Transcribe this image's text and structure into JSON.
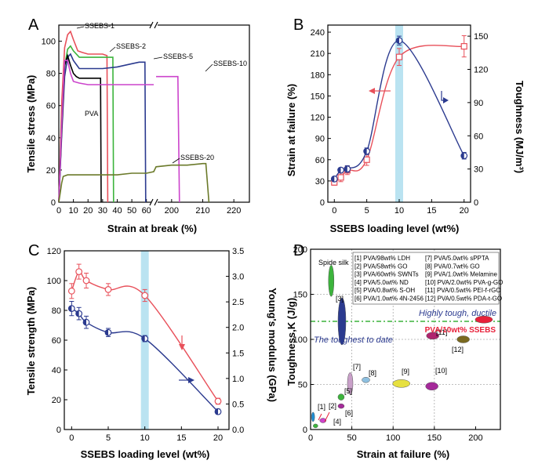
{
  "figure": {
    "colors": {
      "axis": "#000000",
      "grid": "#aaaaaa",
      "red": "#e8505a",
      "blue": "#2b3a8f",
      "cyan": "#a9dcee"
    }
  },
  "chart_data": [
    {
      "panel": "A",
      "type": "line",
      "xlabel": "Strain at break (%)",
      "ylabel": "Tensile stress (MPa)",
      "xlim": [
        0,
        225
      ],
      "ylim": [
        0,
        110
      ],
      "xticks": [
        0,
        10,
        20,
        30,
        40,
        50,
        60,
        200,
        210,
        220
      ],
      "ytick_labels": [
        "0",
        "20",
        "40",
        "60",
        "80",
        "100"
      ],
      "axis_break": [
        65,
        195
      ],
      "series": [
        {
          "name": "SSEBS-1",
          "color": "#e8505a",
          "x": [
            0,
            2,
            4,
            6,
            8,
            10,
            13,
            16,
            20,
            25,
            30,
            33,
            33.5
          ],
          "y": [
            0,
            62,
            96,
            104,
            106,
            101,
            94,
            93,
            92,
            92,
            92,
            91,
            0
          ]
        },
        {
          "name": "SSEBS-2",
          "color": "#3cb43c",
          "x": [
            0,
            2,
            4,
            6,
            8,
            10,
            14,
            18,
            22,
            26,
            30,
            34,
            36,
            37,
            37.5
          ],
          "y": [
            0,
            50,
            84,
            95,
            97,
            94,
            90,
            90,
            90,
            90,
            90,
            90,
            90,
            90,
            0
          ]
        },
        {
          "name": "SSEBS-5",
          "color": "#2b3a8f",
          "x": [
            0,
            2,
            4,
            6,
            8,
            10,
            14,
            20,
            30,
            40,
            50,
            55,
            59,
            59.5
          ],
          "y": [
            0,
            42,
            78,
            90,
            92,
            88,
            83,
            83,
            83,
            84,
            86,
            87,
            87,
            0
          ]
        },
        {
          "name": "PVA",
          "color": "#000000",
          "x": [
            0,
            2,
            4,
            6,
            8,
            10,
            12,
            14,
            16,
            20,
            25,
            28,
            28.6,
            29
          ],
          "y": [
            0,
            45,
            85,
            91,
            85,
            80,
            78,
            77,
            77,
            77,
            77,
            77,
            77,
            0
          ]
        },
        {
          "name": "",
          "color": "#cc44cc",
          "x": [
            0,
            2,
            4,
            6,
            8,
            10,
            14,
            20,
            30,
            40,
            50,
            60,
            65
          ],
          "y": [
            0,
            48,
            88,
            88,
            80,
            75,
            74,
            73,
            73,
            73,
            73,
            73,
            73
          ]
        },
        {
          "name": "SSEBS-10",
          "color": "#cc44cc",
          "x": [
            195,
            198,
            202,
            202.5
          ],
          "y": [
            78,
            78,
            78,
            0
          ]
        },
        {
          "name": "SSEBS-20",
          "color": "#6b7a2a",
          "x": [
            0,
            2,
            3,
            6,
            10,
            20,
            30,
            40,
            50,
            60,
            65,
            195,
            200,
            205,
            210,
            211,
            212
          ],
          "y": [
            0,
            12,
            16,
            17,
            17,
            17,
            17,
            17,
            18,
            18,
            19,
            22,
            23,
            23,
            24,
            24,
            0
          ]
        }
      ],
      "labels": [
        "SSEBS-1",
        "SSEBS-2",
        "SSEBS-5",
        "SSEBS-10",
        "PVA",
        "SSEBS-20"
      ]
    },
    {
      "panel": "B",
      "type": "line",
      "xlabel": "SSEBS loading level (wt%)",
      "ylabel": "Strain at failure (%)",
      "y2label": "Toughness (MJ/m³)",
      "xlim": [
        -1,
        21
      ],
      "ylim": [
        0,
        250
      ],
      "y2lim": [
        0,
        160
      ],
      "xticks": [
        0,
        5,
        10,
        15,
        20
      ],
      "yticks": [
        0,
        30,
        60,
        90,
        120,
        150,
        180,
        210,
        240
      ],
      "y2ticks": [
        0,
        30,
        60,
        90,
        120,
        150
      ],
      "highlight_x": 10,
      "series": [
        {
          "name": "Strain at failure",
          "color": "#e8505a",
          "axis": "left",
          "marker": "open-square",
          "x": [
            0,
            1,
            2,
            5,
            10,
            20
          ],
          "y": [
            28,
            35,
            45,
            60,
            205,
            220
          ],
          "err": [
            4,
            6,
            6,
            8,
            12,
            15
          ]
        },
        {
          "name": "Toughness",
          "color": "#2b3a8f",
          "axis": "right",
          "marker": "half-circle",
          "x": [
            0,
            1,
            2,
            5,
            10,
            20
          ],
          "y": [
            21,
            29,
            30,
            46,
            146,
            42
          ],
          "err": [
            2,
            2,
            3,
            3,
            4,
            3
          ]
        }
      ]
    },
    {
      "panel": "C",
      "type": "line",
      "xlabel": "SSEBS loading level (wt%)",
      "ylabel": "Tensile strength (MPa)",
      "y2label": "Young's modulus (GPa)",
      "xlim": [
        -1,
        21.5
      ],
      "ylim": [
        0,
        120
      ],
      "y2lim": [
        0,
        3.5
      ],
      "xticks": [
        0,
        5,
        10,
        15,
        20
      ],
      "yticks": [
        0,
        20,
        40,
        60,
        80,
        100,
        120
      ],
      "y2ticks": [
        0.0,
        0.5,
        1.0,
        1.5,
        2.0,
        2.5,
        3.0,
        3.5
      ],
      "highlight_x": 10,
      "series": [
        {
          "name": "Tensile strength",
          "color": "#e8505a",
          "axis": "left",
          "marker": "open-circle",
          "x": [
            0,
            1,
            2,
            5,
            10,
            20
          ],
          "y": [
            93,
            106,
            100,
            94,
            90,
            19
          ],
          "err": [
            5,
            5,
            5,
            4,
            4,
            2
          ]
        },
        {
          "name": "Young's modulus",
          "color": "#2b3a8f",
          "axis": "right",
          "marker": "half-circle",
          "x": [
            0,
            1,
            2,
            5,
            10,
            20
          ],
          "y": [
            2.37,
            2.27,
            2.1,
            1.9,
            1.78,
            0.35
          ],
          "err": [
            0.14,
            0.12,
            0.12,
            0.08,
            0.06,
            0.05
          ]
        }
      ]
    },
    {
      "panel": "D",
      "type": "scatter",
      "xlabel": "Strain at failure (%)",
      "ylabel": "Toughness,K (J/g)",
      "xlim": [
        0,
        230
      ],
      "ylim": [
        0,
        200
      ],
      "xticks": [
        0,
        50,
        100,
        150,
        200
      ],
      "yticks": [
        0,
        50,
        100,
        150,
        200
      ],
      "hline": 120,
      "legend": [
        "[1] PVA/98wt% LDH",
        "[2] PVA/58wt% GO",
        "[3] PVA/60wt% SWNTs",
        "[4] PVA/5.0wt% ND",
        "[5] PVA/0.8wt% S-OH",
        "[6] PVA/1.0wt% 4N-2456",
        "[7] PVA/5.0wt% sPPTA",
        "[8] PVA/0.7wt% GO",
        "[9] PVA/1.0wt% Melamine",
        "[10] PVA/2.0wt% PVA-g-GO",
        "[11] PVA/0.5wt% PEI-f-rGO",
        "[12] PVA/0.5wt% PDA-t-GO"
      ],
      "annotations": [
        "Spide silk",
        "Highly tough, ductile",
        "The toughest to date",
        "PVA/10wt% SSEBS"
      ],
      "points": [
        {
          "label": "[1]",
          "x": 3,
          "y": 14,
          "color": "#1e8fd6"
        },
        {
          "label": "[2]",
          "x": 6,
          "y": 4,
          "color": "#3cb43c"
        },
        {
          "label": "[3]",
          "x": 38,
          "y": 120,
          "color": "#2b3a8f"
        },
        {
          "label": "[4]",
          "x": 15,
          "y": 10,
          "color": "#cc44cc"
        },
        {
          "label": "[5]",
          "x": 37,
          "y": 36,
          "color": "#3cb43c"
        },
        {
          "label": "[6]",
          "x": 37,
          "y": 26,
          "color": "#a52a9a"
        },
        {
          "label": "[7]",
          "x": 48,
          "y": 51,
          "color": "#c9a0c9"
        },
        {
          "label": "[8]",
          "x": 67,
          "y": 55,
          "color": "#8ec0e0"
        },
        {
          "label": "[9]",
          "x": 110,
          "y": 51,
          "color": "#e6e040"
        },
        {
          "label": "[10]",
          "x": 147,
          "y": 48,
          "color": "#a52a9a"
        },
        {
          "label": "[11]",
          "x": 148,
          "y": 104,
          "color": "#b0256e"
        },
        {
          "label": "[12]",
          "x": 185,
          "y": 100,
          "color": "#7a6a20"
        },
        {
          "label": "Spide silk",
          "x": 25,
          "y": 165,
          "color": "#3cb43c"
        },
        {
          "label": "PVA/10wt% SSEBS",
          "x": 210,
          "y": 122,
          "color": "#e8203a"
        }
      ]
    }
  ],
  "panel_letters": {
    "a": "A",
    "b": "B",
    "c": "C",
    "d": "D"
  }
}
